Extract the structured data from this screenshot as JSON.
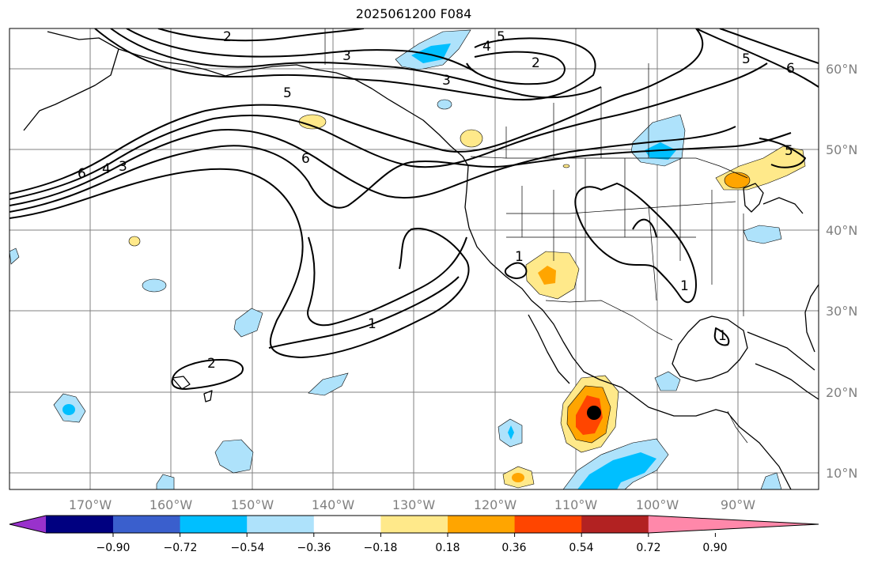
{
  "title": "2025061200 F084",
  "map": {
    "projection": "PlateCarree",
    "lon_range": [
      -180,
      -80
    ],
    "lat_range": [
      8,
      65
    ],
    "longitude_labels": [
      "170°W",
      "160°W",
      "150°W",
      "140°W",
      "130°W",
      "120°W",
      "110°W",
      "100°W",
      "90°W"
    ],
    "latitude_labels": [
      "60°N",
      "50°N",
      "40°N",
      "30°N",
      "20°N",
      "10°N"
    ],
    "gridlines": true,
    "grid_color": "#808080",
    "tick_label_color": "#808080"
  },
  "contours": {
    "color": "#000000",
    "labels": [
      "2",
      "3",
      "5",
      "4",
      "5",
      "2",
      "3",
      "5",
      "6",
      "6",
      "4",
      "3",
      "6",
      "5",
      "2",
      "1",
      "1",
      "1",
      "1"
    ]
  },
  "colorbar": {
    "extend": "both",
    "colors": [
      "#9932cc",
      "#000080",
      "#3a5fcd",
      "#00bfff",
      "#aee2fb",
      "#ffffff",
      "#ffe98a",
      "#ffa500",
      "#ff4500",
      "#b22222",
      "#ff88aa"
    ],
    "tick_labels": [
      "−0.90",
      "−0.72",
      "−0.54",
      "−0.36",
      "−0.18",
      "0.18",
      "0.36",
      "0.54",
      "0.72",
      "0.90"
    ]
  },
  "marker": {
    "color": "#000000"
  }
}
